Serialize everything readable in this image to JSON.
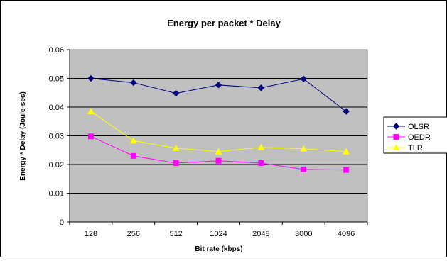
{
  "chart_data": {
    "type": "line",
    "title": "Energy per packet * Delay",
    "xlabel": "Bit rate (kbps)",
    "ylabel": "Energy * Delay (Joule-sec)",
    "categories": [
      "128",
      "256",
      "512",
      "1024",
      "2048",
      "3000",
      "4096"
    ],
    "ylim": [
      0,
      0.06
    ],
    "yticks": [
      "0",
      "0.01",
      "0.02",
      "0.03",
      "0.04",
      "0.05",
      "0.06"
    ],
    "grid": true,
    "legend": "right",
    "plot_background": "#C0C0C0",
    "series": [
      {
        "name": "OLSR",
        "values": [
          0.05,
          0.0485,
          0.0448,
          0.0477,
          0.0467,
          0.0498,
          0.0385
        ],
        "color": "#000080",
        "marker": "diamond"
      },
      {
        "name": "OEDR",
        "values": [
          0.0298,
          0.023,
          0.0205,
          0.0213,
          0.0205,
          0.0183,
          0.0181
        ],
        "color": "#FF00FF",
        "marker": "square"
      },
      {
        "name": "TLR",
        "values": [
          0.0385,
          0.0283,
          0.0257,
          0.0245,
          0.026,
          0.0255,
          0.0245
        ],
        "color": "#FFFF00",
        "marker": "triangle"
      }
    ]
  }
}
